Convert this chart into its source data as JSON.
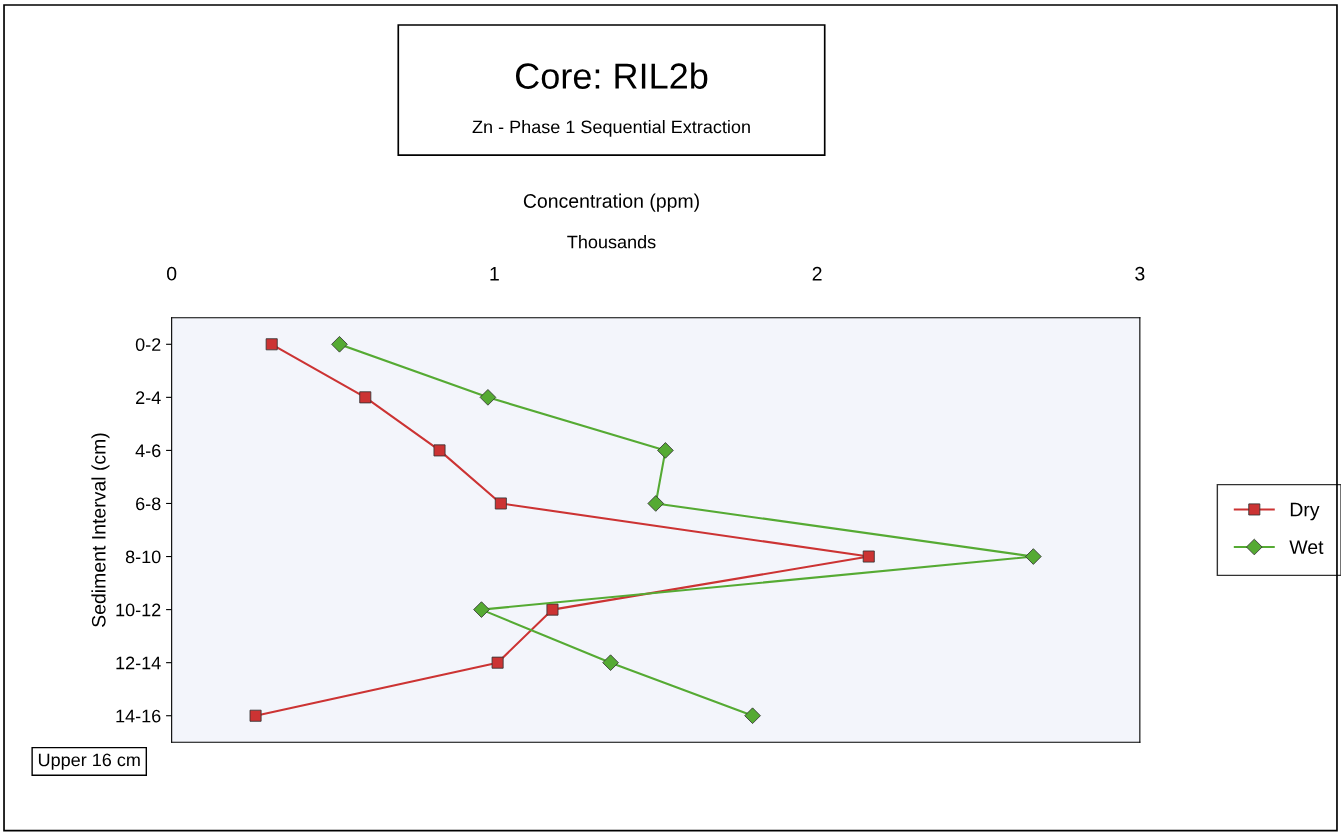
{
  "chart_data": {
    "type": "line",
    "orientation": "horizontal",
    "title": "Core: RIL2b",
    "subtitle": "Zn - Phase 1 Sequential Extraction",
    "xlabel": "Concentration (ppm)",
    "ylabel": "Sediment Interval (cm)",
    "annotations": [
      "Thousands",
      "Upper 16 cm"
    ],
    "categories": [
      "0-2",
      "2-4",
      "4-6",
      "6-8",
      "8-10",
      "10-12",
      "12-14",
      "14-16"
    ],
    "series": [
      {
        "name": "Dry",
        "color": "#cc3333",
        "marker": "square",
        "values": [
          0.31,
          0.6,
          0.83,
          1.02,
          2.16,
          1.18,
          1.01,
          0.26
        ]
      },
      {
        "name": "Wet",
        "color": "#55aa33",
        "marker": "diamond",
        "values": [
          0.52,
          0.98,
          1.53,
          1.5,
          2.67,
          0.96,
          1.36,
          1.8
        ]
      }
    ],
    "xlim": [
      0,
      3
    ],
    "xticks": [
      0,
      1,
      2,
      3
    ],
    "grid": false,
    "legend": "right",
    "line_style": "solid"
  }
}
